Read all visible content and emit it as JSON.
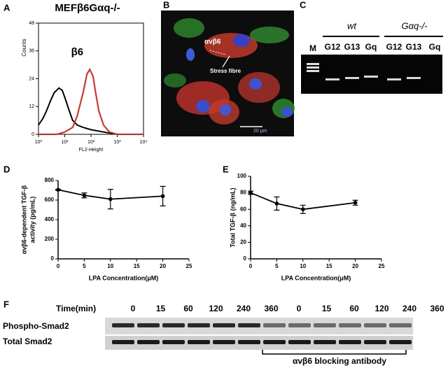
{
  "panel_labels": [
    "A",
    "B",
    "C",
    "D",
    "E",
    "F"
  ],
  "chart_data": [
    {
      "type": "line",
      "title": "MEFβ6Gαq-/-",
      "annotation": "β6",
      "xlabel": "FL2-Height",
      "ylabel": "Counts",
      "log_x": true,
      "xlim": [
        1,
        10000
      ],
      "xticks": [
        {
          "value": 1,
          "label": "10⁰"
        },
        {
          "value": 10,
          "label": "10¹"
        },
        {
          "value": 100,
          "label": "10²"
        },
        {
          "value": 1000,
          "label": "10³"
        },
        {
          "value": 10000,
          "label": "10⁴"
        }
      ],
      "ylim": [
        0,
        48
      ],
      "yticks": [
        0,
        12,
        24,
        36,
        48
      ],
      "series": [
        {
          "color": "#000000",
          "x": [
            1,
            1.5,
            2,
            3,
            4,
            6,
            8,
            10,
            15,
            20,
            30,
            50,
            100,
            300,
            1000,
            10000
          ],
          "values": [
            4,
            7,
            10,
            15,
            18,
            20,
            19,
            16,
            10,
            6,
            4,
            3,
            2,
            1,
            0,
            0
          ]
        },
        {
          "color": "#e8201c",
          "x": [
            1,
            5,
            10,
            20,
            30,
            50,
            70,
            90,
            120,
            150,
            200,
            300,
            500,
            1000,
            10000
          ],
          "values": [
            0,
            0,
            1,
            3,
            8,
            18,
            26,
            28,
            25,
            18,
            10,
            4,
            1,
            0,
            0
          ]
        }
      ]
    },
    {
      "type": "line",
      "xlabel": "LPA Concentration(μM)",
      "ylabel": [
        "αvβ6-dependent TGF-β",
        "activity (pg/mL)"
      ],
      "xlim": [
        0,
        25
      ],
      "xticks": [
        0,
        5,
        10,
        15,
        20,
        25
      ],
      "ylim": [
        0,
        800
      ],
      "yticks": [
        0,
        200,
        400,
        600,
        800
      ],
      "color": "#000000",
      "x": [
        0,
        5,
        10,
        20
      ],
      "values": [
        705,
        648,
        610,
        640
      ],
      "errors": [
        5,
        25,
        100,
        100
      ]
    },
    {
      "type": "line",
      "xlabel": "LPA Concentration(μM)",
      "ylabel": "Total TGF-β (ng/mL)",
      "xlim": [
        0,
        25
      ],
      "xticks": [
        0,
        5,
        10,
        15,
        20,
        25
      ],
      "ylim": [
        0,
        100
      ],
      "yticks": [
        0,
        20,
        40,
        60,
        80,
        100
      ],
      "color": "#000000",
      "x": [
        0,
        5,
        10,
        20
      ],
      "values": [
        80,
        67,
        60,
        68
      ],
      "errors": [
        2,
        8,
        5,
        3
      ]
    }
  ],
  "micrograph": {
    "integrin_label": "αvβ6",
    "fibre_label": "Stress fibre",
    "scale_label": "20 μm"
  },
  "gel": {
    "marker": "M",
    "groups": [
      {
        "name": "wt",
        "lanes": [
          "G12",
          "G13",
          "Gq"
        ]
      },
      {
        "name": "Gαq-/-",
        "lanes": [
          "G12",
          "G13",
          "Gq"
        ]
      }
    ]
  },
  "blot": {
    "time_label": "Time(min)",
    "times": [
      "0",
      "15",
      "60",
      "120",
      "240",
      "360",
      "0",
      "15",
      "60",
      "120",
      "240",
      "360"
    ],
    "rows": [
      "Phospho-Smad2",
      "Total Smad2"
    ],
    "bracket_label": "αvβ6 blocking antibody"
  }
}
